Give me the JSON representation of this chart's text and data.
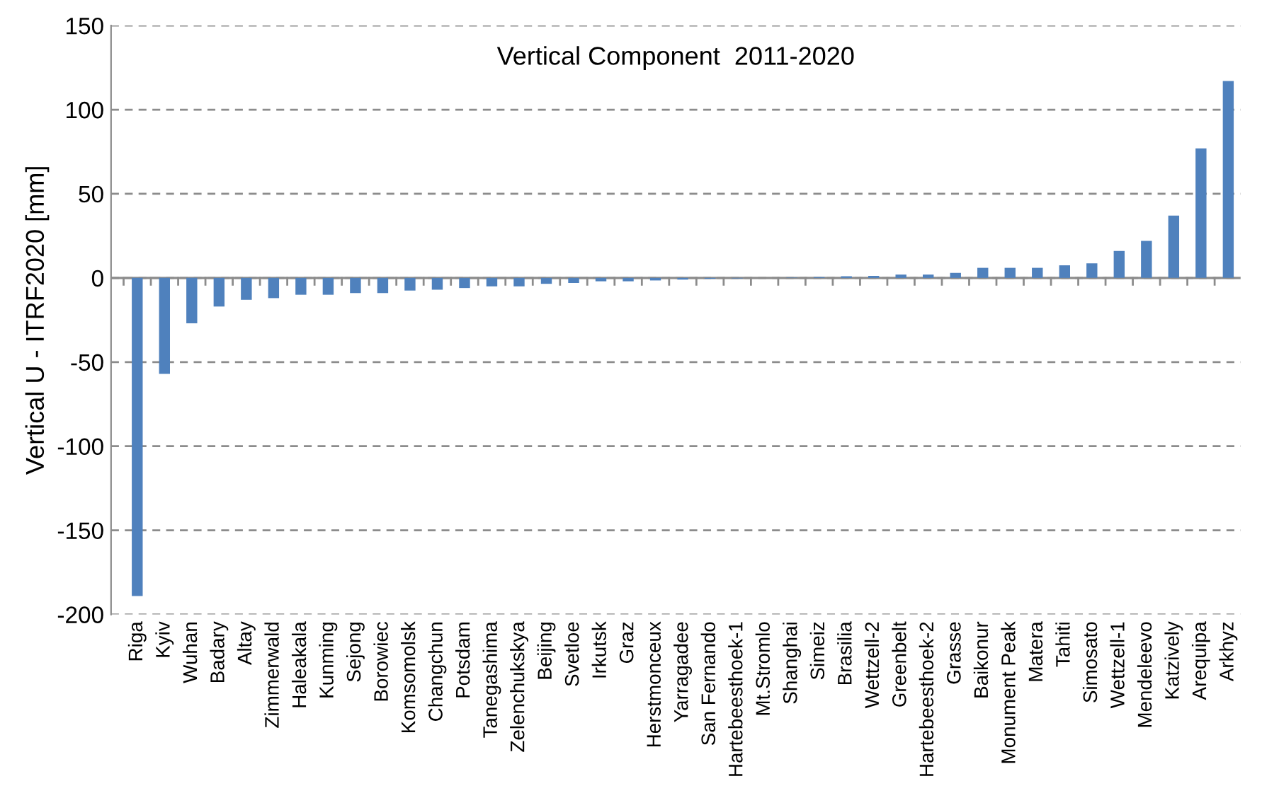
{
  "chart_data": {
    "type": "bar",
    "title": "Vertical Component  2011-2020",
    "ylabel": "Vertical U - ITRF2020 [mm]",
    "categories": [
      "Riga",
      "Kyiv",
      "Wuhan",
      "Badary",
      "Altay",
      "Zimmerwald",
      "Haleakala",
      "Kunming",
      "Sejong",
      "Borowiec",
      "Komsomolsk",
      "Changchun",
      "Potsdam",
      "Tanegashima",
      "Zelenchukskya",
      "Beijing",
      "Svetloe",
      "Irkutsk",
      "Graz",
      "Herstmonceux",
      "Yarragadee",
      "San Fernando",
      "Hartebeesthoek-1",
      "Mt.Stromlo",
      "Shanghai",
      "Simeiz",
      "Brasilia",
      "Wettzell-2",
      "Greenbelt",
      "Hartebeesthoek-2",
      "Grasse",
      "Baikonur",
      "Monument Peak",
      "Matera",
      "Tahiti",
      "Simosato",
      "Wettzell-1",
      "Mendeleevo",
      "Katzively",
      "Arequipa",
      "Arkhyz"
    ],
    "values": [
      -189,
      -57,
      -27,
      -17,
      -13,
      -12,
      -10,
      -10,
      -9,
      -9,
      -7.5,
      -7,
      -6,
      -5,
      -5,
      -3.5,
      -3,
      -2,
      -2,
      -1.5,
      -1,
      -0.5,
      -0.3,
      0,
      0.2,
      0.5,
      1,
      1.2,
      2,
      2,
      3,
      6,
      6,
      6,
      7.5,
      8.7,
      16,
      22,
      37,
      77,
      117
    ],
    "color": "#4f81bd",
    "ylim": [
      -200,
      150
    ],
    "yticks": [
      -200,
      -150,
      -100,
      -50,
      0,
      50,
      100,
      150
    ],
    "grid": "y"
  }
}
